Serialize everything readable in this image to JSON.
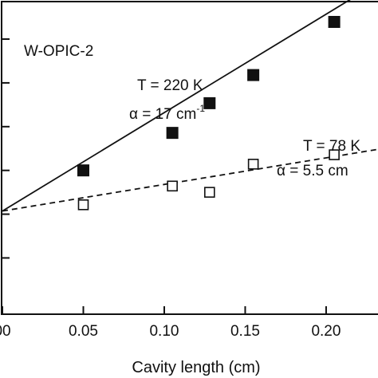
{
  "chart_data": {
    "type": "scatter",
    "title": "",
    "sample_label": "W-OPIC-2",
    "xlabel": "Cavity length (cm)",
    "ylabel": "",
    "xlim": [
      0.0,
      0.235
    ],
    "x_ticks": [
      0.0,
      0.05,
      0.1,
      0.15,
      0.2
    ],
    "x_tick_labels": [
      "00",
      "0.05",
      "0.10",
      "0.15",
      "0.20"
    ],
    "y_tick_count": 6,
    "grid": false,
    "series": [
      {
        "name": "T = 220 K",
        "marker": "filled-square",
        "fit_line": "solid",
        "annotation_T": "T = 220 K",
        "annotation_alpha": "α = 17 cm",
        "annotation_alpha_exp": "-1",
        "points": [
          {
            "x": 0.05,
            "y": 0.46
          },
          {
            "x": 0.105,
            "y": 0.58
          },
          {
            "x": 0.128,
            "y": 0.675
          },
          {
            "x": 0.155,
            "y": 0.765
          },
          {
            "x": 0.205,
            "y": 0.935
          }
        ],
        "fit": [
          [
            0.0,
            0.33
          ],
          [
            0.235,
            1.07
          ]
        ]
      },
      {
        "name": "T = 78 K",
        "marker": "open-square",
        "fit_line": "dashed",
        "annotation_T": "T = 78 K",
        "annotation_alpha": "α = 5.5 cm",
        "annotation_alpha_exp": "",
        "points": [
          {
            "x": 0.05,
            "y": 0.35
          },
          {
            "x": 0.105,
            "y": 0.41
          },
          {
            "x": 0.128,
            "y": 0.39
          },
          {
            "x": 0.155,
            "y": 0.48
          },
          {
            "x": 0.205,
            "y": 0.51
          }
        ],
        "fit": [
          [
            0.0,
            0.33
          ],
          [
            0.235,
            0.53
          ]
        ]
      }
    ]
  }
}
